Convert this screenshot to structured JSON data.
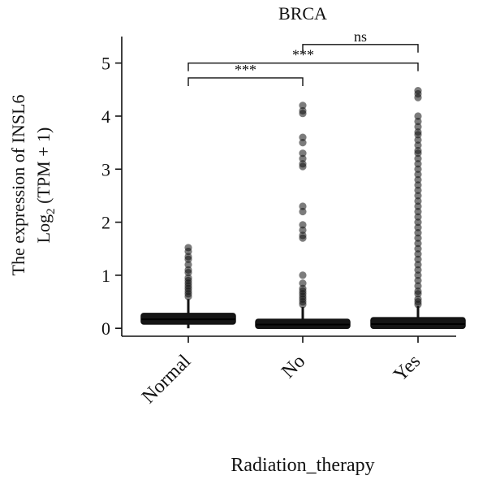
{
  "chart_data": {
    "type": "box",
    "title": "BRCA",
    "ylabel_line1": "The expression of INSL6",
    "ylabel_line2_prefix": "Log",
    "ylabel_line2_sub": "2",
    "ylabel_line2_suffix": " (TPM + 1)",
    "xlabel": "Radiation_therapy",
    "categories": [
      "Normal",
      "No",
      "Yes"
    ],
    "ylim": [
      -0.15,
      5.5
    ],
    "yticks": [
      0,
      1,
      2,
      3,
      4,
      5
    ],
    "boxes": [
      {
        "category": "Normal",
        "q1": 0.08,
        "median": 0.17,
        "q3": 0.28,
        "whisker_low": 0.0,
        "whisker_high": 0.55,
        "outliers": [
          0.6,
          0.65,
          0.7,
          0.75,
          0.8,
          0.85,
          0.9,
          0.95,
          1.05,
          1.1,
          1.2,
          1.3,
          1.35,
          1.45,
          1.52
        ]
      },
      {
        "category": "No",
        "q1": 0.0,
        "median": 0.07,
        "q3": 0.17,
        "whisker_low": 0.0,
        "whisker_high": 0.4,
        "outliers": [
          0.45,
          0.5,
          0.55,
          0.6,
          0.65,
          0.7,
          0.75,
          0.85,
          1.0,
          1.7,
          1.75,
          1.85,
          1.95,
          2.2,
          2.3,
          3.05,
          3.1,
          3.2,
          3.3,
          3.5,
          3.6,
          4.05,
          4.1,
          4.2
        ]
      },
      {
        "category": "Yes",
        "q1": 0.0,
        "median": 0.08,
        "q3": 0.2,
        "whisker_low": 0.0,
        "whisker_high": 0.42,
        "outliers": [
          0.45,
          0.5,
          0.55,
          0.65,
          0.7,
          0.8,
          0.9,
          1.0,
          1.1,
          1.2,
          1.3,
          1.4,
          1.5,
          1.6,
          1.7,
          1.8,
          1.9,
          2.0,
          2.1,
          2.2,
          2.3,
          2.4,
          2.5,
          2.6,
          2.7,
          2.8,
          2.9,
          3.0,
          3.1,
          3.2,
          3.3,
          3.35,
          3.45,
          3.55,
          3.65,
          3.7,
          3.8,
          3.9,
          4.0,
          4.35,
          4.42,
          4.48
        ]
      }
    ],
    "significance": [
      {
        "from": "Normal",
        "to": "No",
        "label": "***",
        "y": 4.72
      },
      {
        "from": "Normal",
        "to": "Yes",
        "label": "***",
        "y": 5.0
      },
      {
        "from": "No",
        "to": "Yes",
        "label": "ns",
        "y": 5.35
      }
    ]
  }
}
